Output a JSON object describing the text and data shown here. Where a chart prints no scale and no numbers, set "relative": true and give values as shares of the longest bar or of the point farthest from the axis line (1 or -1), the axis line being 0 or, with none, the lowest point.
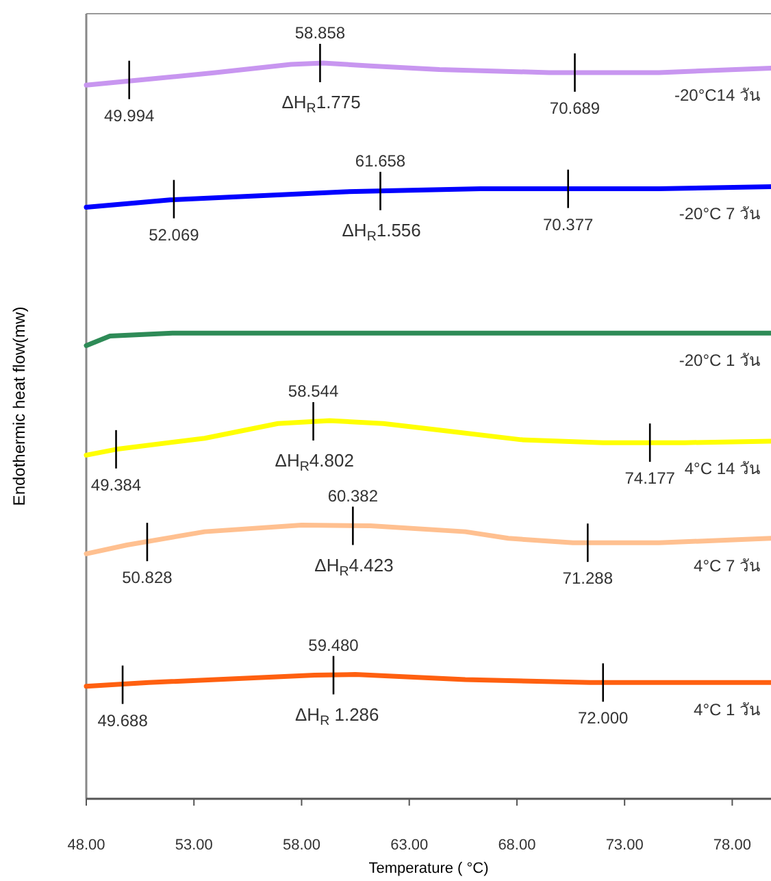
{
  "chart_data": {
    "type": "line",
    "relative": true,
    "xlabel": "Temperature ( °C)",
    "ylabel": "Endothermic heat flow(mw)",
    "xlim": [
      48,
      79.8
    ],
    "xticks": [
      {
        "value": 48,
        "label": "48.00"
      },
      {
        "value": 53,
        "label": "53.00"
      },
      {
        "value": 58,
        "label": "58.00"
      },
      {
        "value": 63,
        "label": "63.00"
      },
      {
        "value": 68,
        "label": "68.00"
      },
      {
        "value": 73,
        "label": "73.00"
      },
      {
        "value": 78,
        "label": "78.00"
      }
    ],
    "series": [
      {
        "name": "-20°C14 วัน",
        "color": "#c896f0",
        "x": [
          48,
          50.9,
          54,
          57.5,
          59,
          61.2,
          64.4,
          69.5,
          74.6,
          79.8
        ],
        "values": [
          0.97,
          0.978,
          0.987,
          0.998,
          1.0,
          0.996,
          0.991,
          0.987,
          0.987,
          0.993
        ]
      },
      {
        "name": "-20°C 7 วัน",
        "color": "#0000ff",
        "x": [
          48,
          51.9,
          60,
          66.3,
          74.6,
          79.8
        ],
        "values": [
          0.804,
          0.814,
          0.825,
          0.829,
          0.829,
          0.832
        ]
      },
      {
        "name": "-20°C 1 วัน",
        "color": "#2e8b57",
        "x": [
          48,
          49.1,
          52,
          79.8
        ],
        "values": [
          0.616,
          0.629,
          0.633,
          0.633
        ]
      },
      {
        "name": "4°C 14 วัน",
        "color": "#ffff00",
        "x": [
          48,
          49.4,
          53.5,
          56.9,
          59.3,
          61.8,
          65,
          68.2,
          72,
          75.8,
          79.8
        ],
        "values": [
          0.467,
          0.475,
          0.49,
          0.51,
          0.514,
          0.51,
          0.499,
          0.488,
          0.484,
          0.484,
          0.486
        ]
      },
      {
        "name": "4°C 7 วัน",
        "color": "#ffc090",
        "x": [
          48,
          49.9,
          53.5,
          58,
          61.2,
          65.6,
          67.6,
          70.6,
          74.6,
          79.8
        ],
        "values": [
          0.333,
          0.345,
          0.363,
          0.372,
          0.371,
          0.363,
          0.354,
          0.348,
          0.348,
          0.354
        ]
      },
      {
        "name": "4°C 1 วัน",
        "color": "#ff6010",
        "x": [
          48,
          50.9,
          58.6,
          60.5,
          65.6,
          71.4,
          79.8
        ],
        "values": [
          0.153,
          0.158,
          0.168,
          0.169,
          0.162,
          0.158,
          0.158
        ]
      }
    ],
    "annotations": [
      {
        "text": "49.994",
        "x": 49.994,
        "y": 0.977
      },
      {
        "text": "58.858",
        "x": 58.858,
        "y": 1.0
      },
      {
        "text": "70.689",
        "x": 70.689,
        "y": 0.987
      },
      "ΔH$_{R}$1.775",
      {
        "text": "52.069",
        "x": 52.069,
        "y": 0.815
      },
      {
        "text": "61.658",
        "x": 61.658,
        "y": 0.826
      },
      {
        "text": "70.377",
        "x": 70.377,
        "y": 0.829
      },
      "ΔH$_{R}$1.556",
      {
        "text": "49.384",
        "x": 49.384,
        "y": 0.475
      },
      {
        "text": "58.544",
        "x": 58.544,
        "y": 0.513
      },
      {
        "text": "74.177",
        "x": 74.177,
        "y": 0.484
      },
      "ΔH$_{R}$4.802",
      {
        "text": "50.828",
        "x": 50.828,
        "y": 0.349
      },
      {
        "text": "60.382",
        "x": 60.382,
        "y": 0.371
      },
      {
        "text": "71.288",
        "x": 71.288,
        "y": 0.348
      },
      "ΔH$_{R}$4.423",
      {
        "text": "49.688",
        "x": 49.688,
        "y": 0.155
      },
      {
        "text": "59.480",
        "x": 59.48,
        "y": 0.168
      },
      {
        "text": "72.000",
        "x": 72.0,
        "y": 0.158
      },
      "ΔH$_{R}$ 1.286"
    ]
  }
}
